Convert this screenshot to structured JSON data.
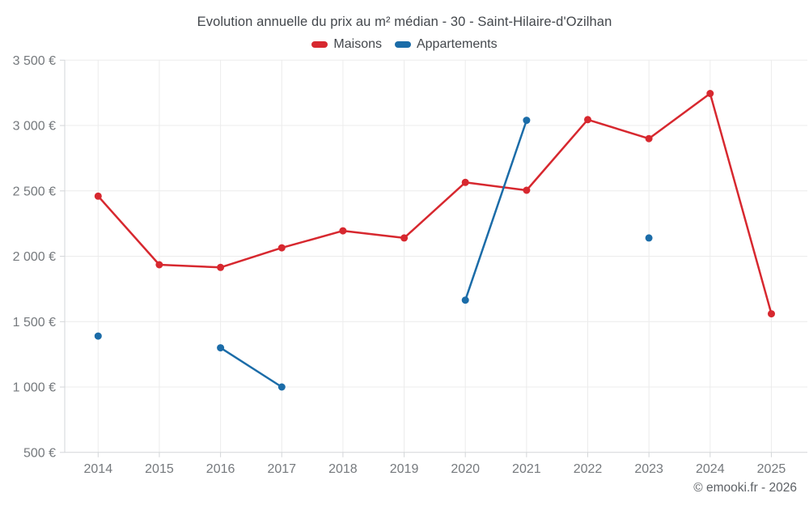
{
  "chart_data": {
    "type": "line",
    "title": "Evolution annuelle du prix au m² médian - 30 - Saint-Hilaire-d'Ozilhan",
    "xlabel": "",
    "ylabel": "",
    "ylim": [
      500,
      3500
    ],
    "grid": true,
    "legend_position": "top",
    "categories": [
      "2014",
      "2015",
      "2016",
      "2017",
      "2018",
      "2019",
      "2020",
      "2021",
      "2022",
      "2023",
      "2024",
      "2025"
    ],
    "y_ticks": [
      {
        "value": 500,
        "label": "500 €"
      },
      {
        "value": 1000,
        "label": "1 000 €"
      },
      {
        "value": 1500,
        "label": "1 500 €"
      },
      {
        "value": 2000,
        "label": "2 000 €"
      },
      {
        "value": 2500,
        "label": "2 500 €"
      },
      {
        "value": 3000,
        "label": "3 000 €"
      },
      {
        "value": 3500,
        "label": "3 500 €"
      }
    ],
    "series": [
      {
        "name": "Maisons",
        "color": "#d7282f",
        "values": [
          2460,
          1935,
          1915,
          2065,
          2195,
          2140,
          2565,
          2505,
          3045,
          2900,
          3245,
          1560
        ]
      },
      {
        "name": "Appartements",
        "color": "#1b6ca8",
        "values": [
          1390,
          null,
          1300,
          1000,
          null,
          null,
          1665,
          3040,
          null,
          2140,
          null,
          null
        ]
      }
    ]
  },
  "attribution": "© emooki.fr - 2026"
}
